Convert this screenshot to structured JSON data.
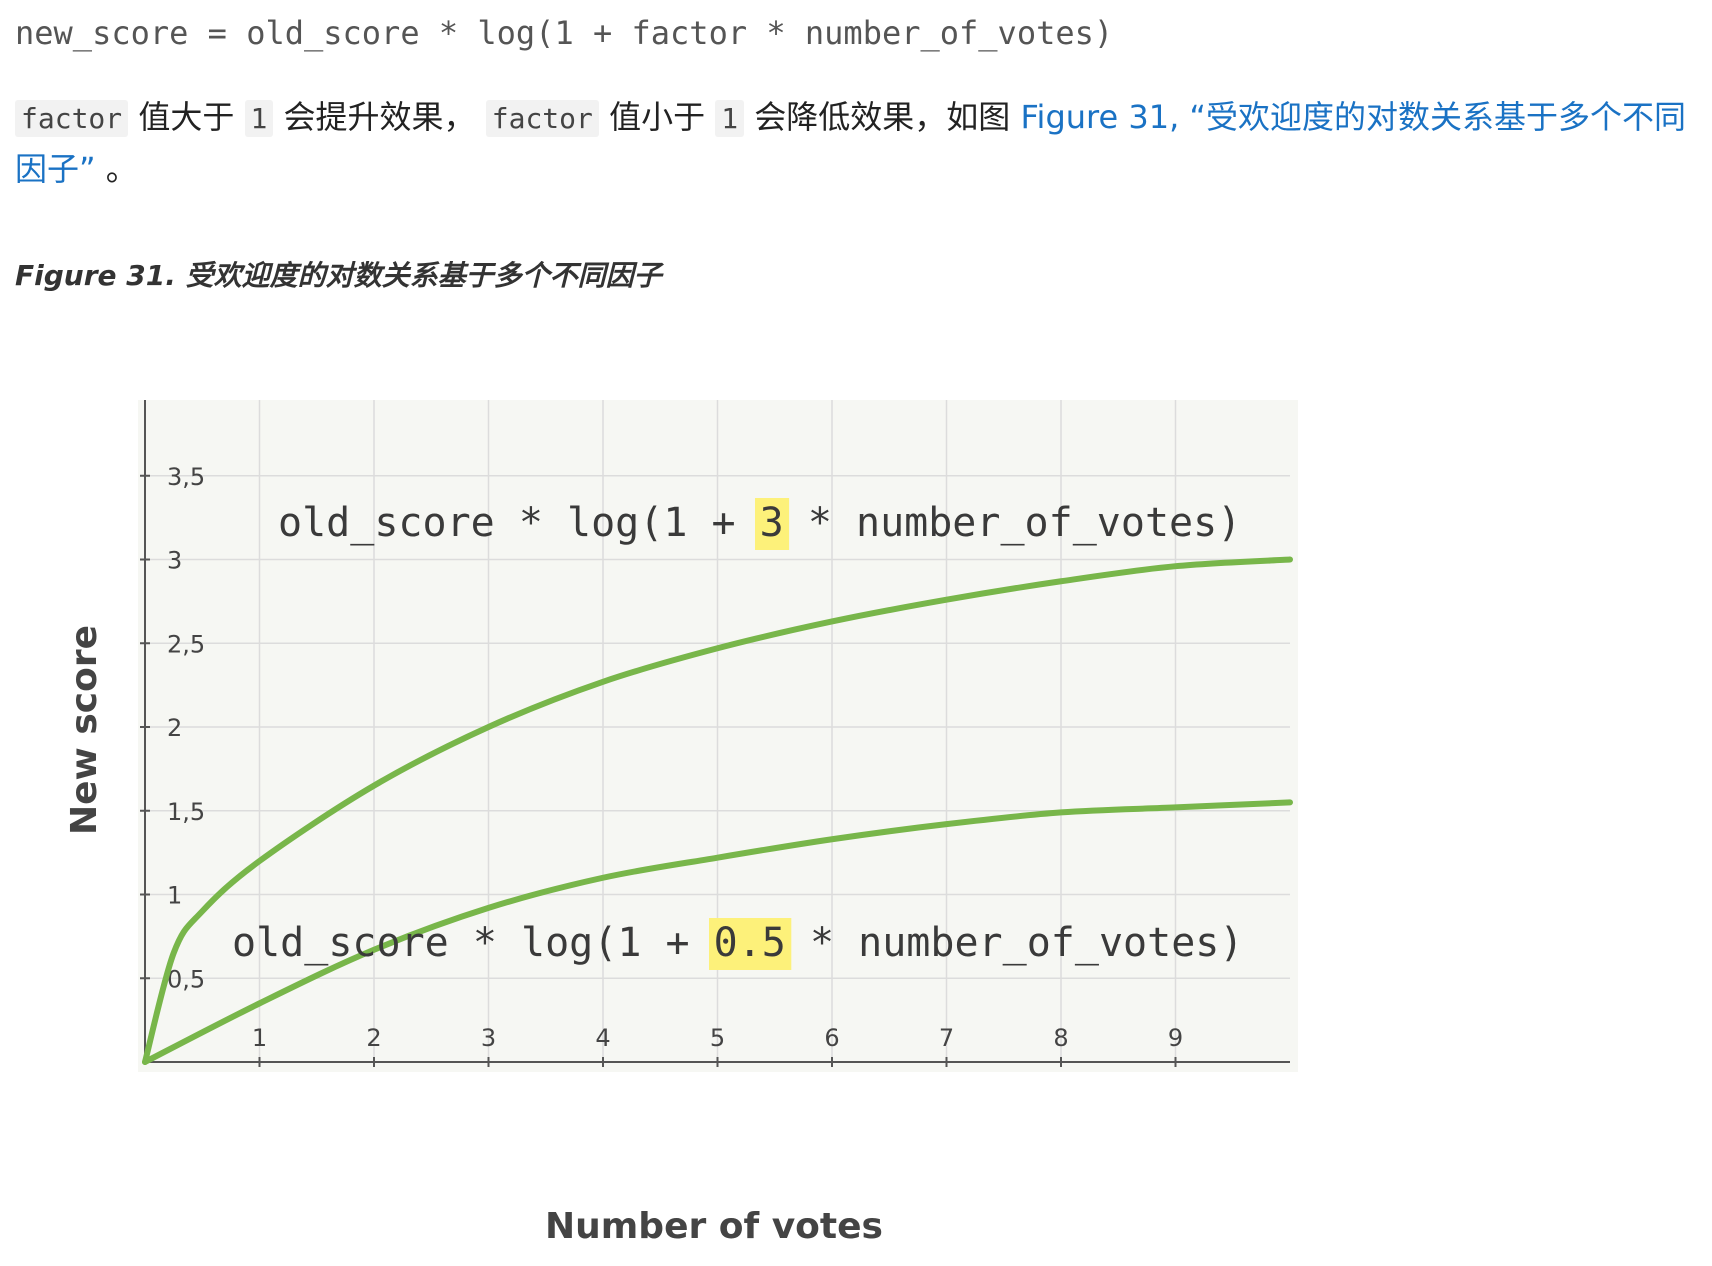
{
  "doc": {
    "code_line": "new_score = old_score * log(1 + factor * number_of_votes)",
    "para": {
      "code1": "factor",
      "t1": " 值大于 ",
      "code2": "1",
      "t2": " 会提升效果， ",
      "code3": "factor",
      "t3": " 值小于 ",
      "code4": "1",
      "t4": " 会降低效果，如图 ",
      "link": "Figure 31, “受欢迎度的对数关系基于多个不同因子”",
      "t5": " 。"
    },
    "figure_caption": "Figure 31. 受欢迎度的对数关系基于多个不同因子"
  },
  "chart_data": {
    "type": "line",
    "xlabel": "Number of votes",
    "ylabel": "New score",
    "xlim": [
      0,
      10
    ],
    "ylim": [
      0,
      4
    ],
    "x_ticks": [
      "1",
      "2",
      "3",
      "4",
      "5",
      "6",
      "7",
      "8",
      "9"
    ],
    "y_ticks": [
      "0,5",
      "1",
      "1,5",
      "2",
      "2,5",
      "3",
      "3,5"
    ],
    "grid": true,
    "line_color": "#78b64a",
    "highlight_color": "#fdf17a",
    "series": [
      {
        "factor": 3,
        "formula_parts": [
          "old_score * log(1 + ",
          "3",
          " * number_of_votes)"
        ],
        "x": [
          0,
          0.25,
          0.5,
          1,
          2,
          3,
          4,
          5,
          6,
          7,
          8,
          9,
          10
        ],
        "y": [
          0,
          0.65,
          0.9,
          1.2,
          1.65,
          2.0,
          2.27,
          2.47,
          2.63,
          2.76,
          2.87,
          2.96,
          3.0
        ]
      },
      {
        "factor": 0.5,
        "formula_parts": [
          "old_score * log(1 + ",
          "0.5",
          " * number_of_votes)"
        ],
        "x": [
          0,
          1,
          2,
          3,
          4,
          5,
          6,
          7,
          8,
          9,
          10
        ],
        "y": [
          0,
          0.35,
          0.67,
          0.92,
          1.1,
          1.22,
          1.33,
          1.42,
          1.49,
          1.52,
          1.55
        ]
      }
    ]
  }
}
